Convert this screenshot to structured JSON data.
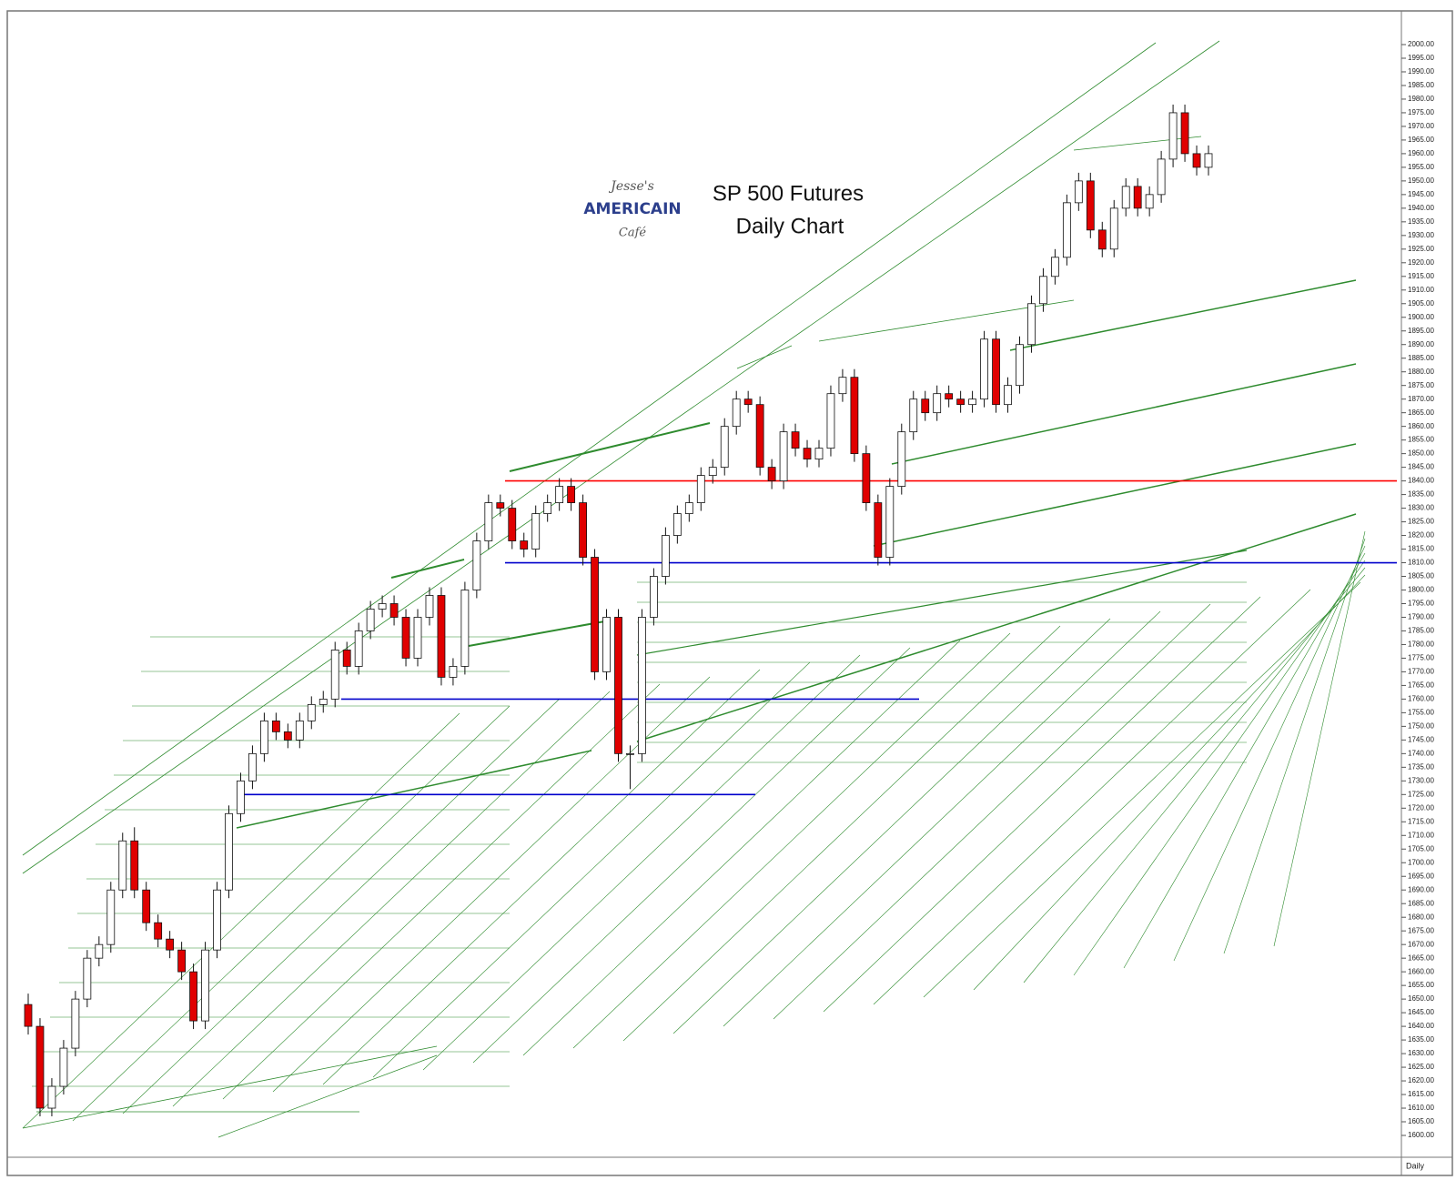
{
  "chart_data": {
    "type": "candlestick",
    "title": "SP 500 Futures",
    "subtitle": "Daily Chart",
    "logo": [
      "Jesse's",
      "AMERICAIN",
      "Café"
    ],
    "period_label": "Daily",
    "up_color": "#ffffff",
    "down_color": "#e00000",
    "open": [
      1648,
      1640,
      1610,
      1618,
      1632,
      1650,
      1665,
      1670,
      1690,
      1708,
      1690,
      1678,
      1672,
      1668,
      1660,
      1642,
      1668,
      1690,
      1718,
      1730,
      1740,
      1752,
      1748,
      1745,
      1752,
      1758,
      1760,
      1778,
      1772,
      1785,
      1793,
      1795,
      1790,
      1775,
      1790,
      1798,
      1768,
      1772,
      1800,
      1818,
      1832,
      1830,
      1818,
      1815,
      1828,
      1832,
      1838,
      1832,
      1812,
      1770,
      1790,
      1740,
      1740,
      1790,
      1805,
      1820,
      1828,
      1832,
      1842,
      1845,
      1860,
      1870,
      1868,
      1845,
      1840,
      1858,
      1852,
      1848,
      1852,
      1872,
      1878,
      1850,
      1832,
      1812,
      1838,
      1858,
      1870,
      1865,
      1872,
      1870,
      1868,
      1870,
      1892,
      1868,
      1875,
      1890,
      1905,
      1915,
      1922,
      1942,
      1950,
      1932,
      1925,
      1940,
      1948,
      1940,
      1945,
      1958,
      1975,
      1960,
      1955
    ],
    "high": [
      1652,
      1643,
      1621,
      1635,
      1653,
      1668,
      1673,
      1693,
      1711,
      1713,
      1693,
      1681,
      1675,
      1671,
      1663,
      1671,
      1693,
      1721,
      1733,
      1743,
      1755,
      1755,
      1751,
      1755,
      1761,
      1763,
      1781,
      1781,
      1788,
      1796,
      1798,
      1798,
      1793,
      1793,
      1801,
      1801,
      1775,
      1803,
      1821,
      1835,
      1835,
      1833,
      1821,
      1831,
      1835,
      1841,
      1841,
      1835,
      1815,
      1793,
      1793,
      1743,
      1793,
      1808,
      1823,
      1831,
      1835,
      1845,
      1848,
      1863,
      1873,
      1873,
      1871,
      1848,
      1861,
      1861,
      1855,
      1855,
      1875,
      1881,
      1881,
      1853,
      1835,
      1841,
      1861,
      1873,
      1873,
      1875,
      1875,
      1873,
      1873,
      1895,
      1895,
      1878,
      1893,
      1908,
      1918,
      1925,
      1945,
      1953,
      1953,
      1935,
      1943,
      1951,
      1951,
      1948,
      1961,
      1978,
      1978,
      1963,
      1963
    ],
    "low": [
      1637,
      1607,
      1607,
      1615,
      1629,
      1647,
      1662,
      1667,
      1687,
      1687,
      1675,
      1669,
      1665,
      1657,
      1639,
      1639,
      1665,
      1687,
      1715,
      1727,
      1737,
      1745,
      1742,
      1742,
      1749,
      1755,
      1757,
      1769,
      1769,
      1782,
      1790,
      1787,
      1772,
      1772,
      1787,
      1765,
      1765,
      1769,
      1797,
      1815,
      1827,
      1815,
      1812,
      1812,
      1825,
      1829,
      1829,
      1809,
      1767,
      1767,
      1737,
      1727,
      1737,
      1787,
      1802,
      1817,
      1825,
      1829,
      1839,
      1842,
      1857,
      1865,
      1842,
      1837,
      1837,
      1849,
      1845,
      1845,
      1849,
      1869,
      1847,
      1829,
      1809,
      1809,
      1835,
      1855,
      1862,
      1862,
      1867,
      1865,
      1865,
      1867,
      1865,
      1865,
      1872,
      1887,
      1902,
      1912,
      1919,
      1939,
      1929,
      1922,
      1922,
      1937,
      1937,
      1937,
      1942,
      1955,
      1957,
      1952,
      1952
    ],
    "close": [
      1640,
      1610,
      1618,
      1632,
      1650,
      1665,
      1670,
      1690,
      1708,
      1690,
      1678,
      1672,
      1668,
      1660,
      1642,
      1668,
      1690,
      1718,
      1730,
      1740,
      1752,
      1748,
      1745,
      1752,
      1758,
      1760,
      1778,
      1772,
      1785,
      1793,
      1795,
      1790,
      1775,
      1790,
      1798,
      1768,
      1772,
      1800,
      1818,
      1832,
      1830,
      1818,
      1815,
      1828,
      1832,
      1838,
      1832,
      1812,
      1770,
      1790,
      1740,
      1740,
      1790,
      1805,
      1820,
      1828,
      1832,
      1842,
      1845,
      1860,
      1870,
      1868,
      1845,
      1840,
      1858,
      1852,
      1848,
      1852,
      1872,
      1878,
      1850,
      1832,
      1812,
      1838,
      1858,
      1870,
      1865,
      1872,
      1870,
      1868,
      1870,
      1892,
      1868,
      1875,
      1890,
      1905,
      1915,
      1922,
      1942,
      1950,
      1932,
      1925,
      1940,
      1948,
      1940,
      1945,
      1958,
      1975,
      1960,
      1955,
      1960
    ],
    "levels": [
      {
        "value": 1840,
        "color": "#ff0000"
      },
      {
        "value": 1810,
        "color": "#0000cc"
      },
      {
        "value": 1760,
        "color": "#0000cc"
      },
      {
        "value": 1725,
        "color": "#0000cc"
      }
    ],
    "ylim": [
      1600,
      2000
    ],
    "yticks": [
      {
        "value": 1600,
        "label": "1600.00"
      },
      {
        "value": 1605,
        "label": "1605.00"
      },
      {
        "value": 1610,
        "label": "1610.00"
      },
      {
        "value": 1615,
        "label": "1615.00"
      },
      {
        "value": 1620,
        "label": "1620.00"
      },
      {
        "value": 1625,
        "label": "1625.00"
      },
      {
        "value": 1630,
        "label": "1630.00"
      },
      {
        "value": 1635,
        "label": "1635.00"
      },
      {
        "value": 1640,
        "label": "1640.00"
      },
      {
        "value": 1645,
        "label": "1645.00"
      },
      {
        "value": 1650,
        "label": "1650.00"
      },
      {
        "value": 1655,
        "label": "1655.00"
      },
      {
        "value": 1660,
        "label": "1660.00"
      },
      {
        "value": 1665,
        "label": "1665.00"
      },
      {
        "value": 1670,
        "label": "1670.00"
      },
      {
        "value": 1675,
        "label": "1675.00"
      },
      {
        "value": 1680,
        "label": "1680.00"
      },
      {
        "value": 1685,
        "label": "1685.00"
      },
      {
        "value": 1690,
        "label": "1690.00"
      },
      {
        "value": 1695,
        "label": "1695.00"
      },
      {
        "value": 1700,
        "label": "1700.00"
      },
      {
        "value": 1705,
        "label": "1705.00"
      },
      {
        "value": 1710,
        "label": "1710.00"
      },
      {
        "value": 1715,
        "label": "1715.00"
      },
      {
        "value": 1720,
        "label": "1720.00"
      },
      {
        "value": 1725,
        "label": "1725.00"
      },
      {
        "value": 1730,
        "label": "1730.00"
      },
      {
        "value": 1735,
        "label": "1735.00"
      },
      {
        "value": 1740,
        "label": "1740.00"
      },
      {
        "value": 1745,
        "label": "1745.00"
      },
      {
        "value": 1750,
        "label": "1750.00"
      },
      {
        "value": 1755,
        "label": "1755.00"
      },
      {
        "value": 1760,
        "label": "1760.00"
      },
      {
        "value": 1765,
        "label": "1765.00"
      },
      {
        "value": 1770,
        "label": "1770.00"
      },
      {
        "value": 1775,
        "label": "1775.00"
      },
      {
        "value": 1780,
        "label": "1780.00"
      },
      {
        "value": 1785,
        "label": "1785.00"
      },
      {
        "value": 1790,
        "label": "1790.00"
      },
      {
        "value": 1795,
        "label": "1795.00"
      },
      {
        "value": 1800,
        "label": "1800.00"
      },
      {
        "value": 1805,
        "label": "1805.00"
      },
      {
        "value": 1810,
        "label": "1810.00"
      },
      {
        "value": 1815,
        "label": "1815.00"
      },
      {
        "value": 1820,
        "label": "1820.00"
      },
      {
        "value": 1825,
        "label": "1825.00"
      },
      {
        "value": 1830,
        "label": "1830.00"
      },
      {
        "value": 1835,
        "label": "1835.00"
      },
      {
        "value": 1840,
        "label": "1840.00"
      },
      {
        "value": 1845,
        "label": "1845.00"
      },
      {
        "value": 1850,
        "label": "1850.00"
      },
      {
        "value": 1855,
        "label": "1855.00"
      },
      {
        "value": 1860,
        "label": "1860.00"
      },
      {
        "value": 1865,
        "label": "1865.00"
      },
      {
        "value": 1870,
        "label": "1870.00"
      },
      {
        "value": 1875,
        "label": "1875.00"
      },
      {
        "value": 1880,
        "label": "1880.00"
      },
      {
        "value": 1885,
        "label": "1885.00"
      },
      {
        "value": 1890,
        "label": "1890.00"
      },
      {
        "value": 1895,
        "label": "1895.00"
      },
      {
        "value": 1900,
        "label": "1900.00"
      },
      {
        "value": 1905,
        "label": "1905.00"
      },
      {
        "value": 1910,
        "label": "1910.00"
      },
      {
        "value": 1915,
        "label": "1915.00"
      },
      {
        "value": 1920,
        "label": "1920.00"
      },
      {
        "value": 1925,
        "label": "1925.00"
      },
      {
        "value": 1930,
        "label": "1930.00"
      },
      {
        "value": 1935,
        "label": "1935.00"
      },
      {
        "value": 1940,
        "label": "1940.00"
      },
      {
        "value": 1945,
        "label": "1945.00"
      },
      {
        "value": 1950,
        "label": "1950.00"
      },
      {
        "value": 1955,
        "label": "1955.00"
      },
      {
        "value": 1960,
        "label": "1960.00"
      },
      {
        "value": 1965,
        "label": "1965.00"
      },
      {
        "value": 1970,
        "label": "1970.00"
      },
      {
        "value": 1975,
        "label": "1975.00"
      },
      {
        "value": 1980,
        "label": "1980.00"
      },
      {
        "value": 1985,
        "label": "1985.00"
      },
      {
        "value": 1990,
        "label": "1990.00"
      },
      {
        "value": 1995,
        "label": "1995.00"
      },
      {
        "value": 2000,
        "label": "2000.00"
      }
    ]
  }
}
